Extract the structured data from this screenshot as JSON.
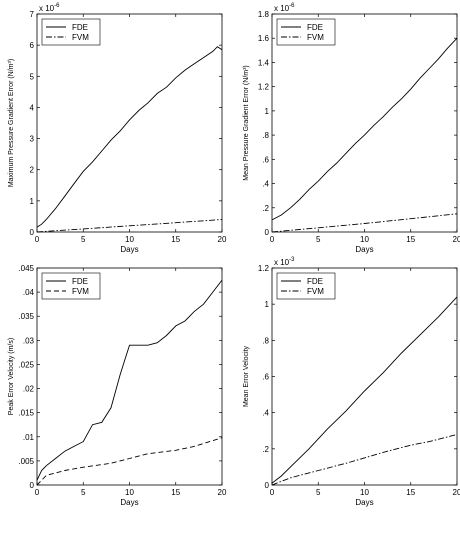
{
  "chart_data": [
    {
      "type": "line",
      "xlabel": "Days",
      "ylabel": "Maximum Pressure Gradient Error (N/m³)",
      "exponent_label": "x 10",
      "exponent_power": "-6",
      "xlim": [
        0,
        20
      ],
      "ylim": [
        0,
        7
      ],
      "xticks": [
        0,
        5,
        10,
        15,
        20
      ],
      "yticks": [
        0,
        1,
        2,
        3,
        4,
        5,
        6,
        7
      ],
      "grid": false,
      "legend": "top-left",
      "series": [
        {
          "name": "FDE",
          "style": "solid",
          "x": [
            0,
            0.5,
            1,
            2,
            3,
            4,
            5,
            6,
            7,
            8,
            9,
            10,
            11,
            12,
            13,
            14,
            15,
            16,
            17,
            18,
            19,
            19.5,
            20
          ],
          "y": [
            0.15,
            0.25,
            0.4,
            0.75,
            1.15,
            1.55,
            1.95,
            2.25,
            2.6,
            2.95,
            3.25,
            3.6,
            3.9,
            4.15,
            4.45,
            4.65,
            4.95,
            5.2,
            5.4,
            5.6,
            5.8,
            5.95,
            5.85
          ]
        },
        {
          "name": "FVM",
          "style": "dashdot",
          "x": [
            0,
            5,
            10,
            15,
            20
          ],
          "y": [
            0.0,
            0.1,
            0.2,
            0.3,
            0.4
          ]
        }
      ]
    },
    {
      "type": "line",
      "xlabel": "Days",
      "ylabel": "Mean Pressure Gradient Error (N/m³)",
      "exponent_label": "x 10",
      "exponent_power": "-6",
      "xlim": [
        0,
        20
      ],
      "ylim": [
        0,
        1.8
      ],
      "xticks": [
        0,
        5,
        10,
        15,
        20
      ],
      "yticks": [
        0,
        0.2,
        0.4,
        0.6,
        0.8,
        1,
        1.2,
        1.4,
        1.6,
        1.8
      ],
      "grid": false,
      "legend": "top-left",
      "series": [
        {
          "name": "FDE",
          "style": "solid",
          "x": [
            0,
            0.5,
            1,
            2,
            3,
            4,
            5,
            6,
            7,
            8,
            9,
            10,
            11,
            12,
            13,
            14,
            15,
            16,
            17,
            18,
            19,
            20
          ],
          "y": [
            0.1,
            0.12,
            0.14,
            0.2,
            0.27,
            0.35,
            0.42,
            0.5,
            0.57,
            0.65,
            0.73,
            0.8,
            0.88,
            0.95,
            1.03,
            1.1,
            1.18,
            1.27,
            1.35,
            1.43,
            1.52,
            1.6
          ]
        },
        {
          "name": "FVM",
          "style": "dashdot",
          "x": [
            0,
            5,
            10,
            15,
            20
          ],
          "y": [
            0.0,
            0.035,
            0.07,
            0.11,
            0.15
          ]
        }
      ]
    },
    {
      "type": "line",
      "xlabel": "Days",
      "ylabel": "Peak Error Velocity (m/s)",
      "xlim": [
        0,
        20
      ],
      "ylim": [
        0,
        0.045
      ],
      "xticks": [
        0,
        5,
        10,
        15,
        20
      ],
      "yticks": [
        0,
        0.005,
        0.01,
        0.015,
        0.02,
        0.025,
        0.03,
        0.035,
        0.04,
        0.045
      ],
      "grid": false,
      "legend": "top-left",
      "series": [
        {
          "name": "FDE",
          "style": "solid",
          "x": [
            0,
            0.5,
            1,
            2,
            3,
            4,
            5,
            6,
            7,
            8,
            9,
            10,
            11,
            12,
            13,
            14,
            15,
            16,
            17,
            18,
            19,
            20
          ],
          "y": [
            0.001,
            0.003,
            0.004,
            0.0055,
            0.007,
            0.008,
            0.009,
            0.0125,
            0.013,
            0.016,
            0.023,
            0.029,
            0.029,
            0.029,
            0.0295,
            0.031,
            0.033,
            0.034,
            0.036,
            0.0375,
            0.04,
            0.0425
          ]
        },
        {
          "name": "FVM",
          "style": "dashed",
          "x": [
            0,
            1,
            3,
            5,
            8,
            10,
            12,
            15,
            17,
            20
          ],
          "y": [
            0.0,
            0.002,
            0.003,
            0.0037,
            0.0045,
            0.0055,
            0.0065,
            0.0072,
            0.008,
            0.0098
          ]
        }
      ]
    },
    {
      "type": "line",
      "xlabel": "Days",
      "ylabel": "Mean Error Velocity",
      "exponent_label": "x 10",
      "exponent_power": "-3",
      "xlim": [
        0,
        20
      ],
      "ylim": [
        0,
        1.2
      ],
      "xticks": [
        0,
        5,
        10,
        15,
        20
      ],
      "yticks": [
        0,
        0.2,
        0.4,
        0.6,
        0.8,
        1,
        1.2
      ],
      "grid": false,
      "legend": "top-left",
      "series": [
        {
          "name": "FDE",
          "style": "solid",
          "x": [
            0,
            0.5,
            1,
            2,
            4,
            6,
            8,
            10,
            12,
            14,
            16,
            18,
            20
          ],
          "y": [
            0.01,
            0.03,
            0.05,
            0.1,
            0.2,
            0.31,
            0.41,
            0.52,
            0.62,
            0.73,
            0.83,
            0.93,
            1.04
          ]
        },
        {
          "name": "FVM",
          "style": "dashdot",
          "x": [
            0,
            2,
            5,
            8,
            10,
            12,
            15,
            17,
            20
          ],
          "y": [
            0.0,
            0.04,
            0.08,
            0.12,
            0.15,
            0.18,
            0.22,
            0.24,
            0.28
          ]
        }
      ]
    }
  ]
}
